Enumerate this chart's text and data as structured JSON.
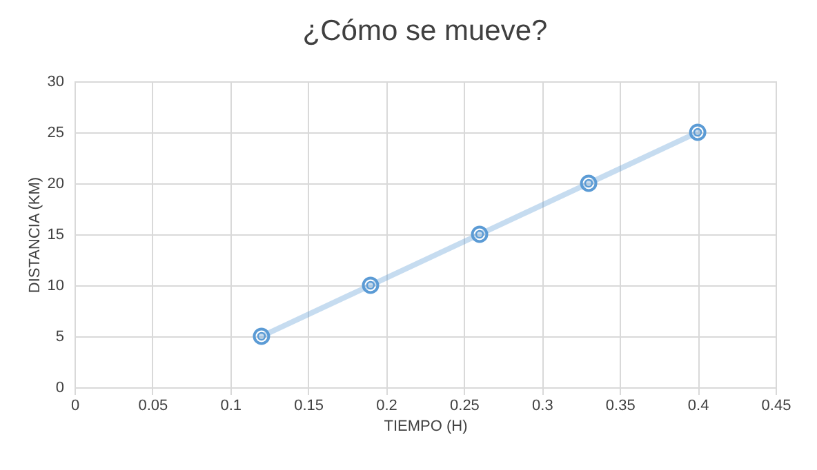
{
  "chart_data": {
    "type": "line",
    "title": "¿Cómo se mueve?",
    "xlabel": "TIEMPO  (H)",
    "ylabel": "DISTANCIA (KM)",
    "x": [
      0.12,
      0.19,
      0.26,
      0.33,
      0.4
    ],
    "series": [
      {
        "color": "#5b9bd5",
        "values": [
          5,
          10,
          15,
          20,
          25
        ]
      }
    ],
    "xlim": [
      0,
      0.45
    ],
    "xticks": [
      0,
      0.05,
      0.1,
      0.15,
      0.2,
      0.25,
      0.3,
      0.35,
      0.4,
      0.45
    ],
    "ylim": [
      0,
      30
    ],
    "yticks": [
      0,
      5,
      10,
      15,
      20,
      25,
      30
    ],
    "grid": true,
    "marker": "circle",
    "line_style": "solid"
  }
}
